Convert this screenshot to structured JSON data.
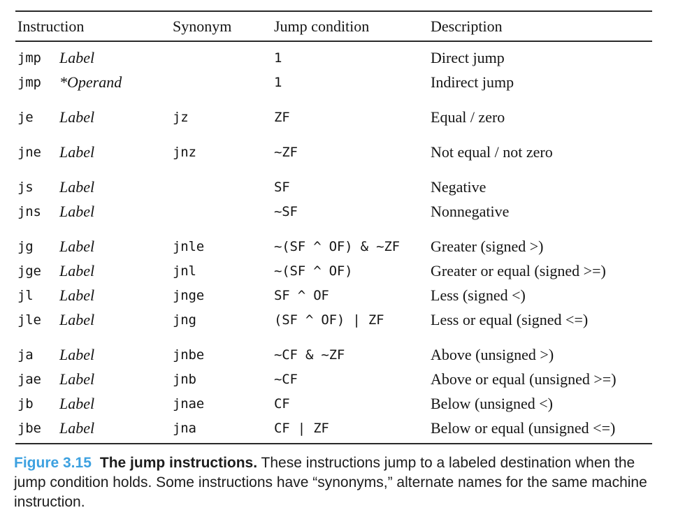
{
  "table": {
    "headers": [
      "Instruction",
      "Synonym",
      "Jump condition",
      "Description"
    ],
    "groups": [
      {
        "rows": [
          {
            "mnemonic": "jmp",
            "operand": "Label",
            "synonym": "",
            "condition": "1",
            "description": "Direct jump"
          },
          {
            "mnemonic": "jmp",
            "operand": "*Operand",
            "synonym": "",
            "condition": "1",
            "description": "Indirect jump"
          }
        ]
      },
      {
        "rows": [
          {
            "mnemonic": "je",
            "operand": "Label",
            "synonym": "jz",
            "condition": "ZF",
            "description": "Equal / zero"
          }
        ]
      },
      {
        "rows": [
          {
            "mnemonic": "jne",
            "operand": "Label",
            "synonym": "jnz",
            "condition": "~ZF",
            "description": "Not equal / not zero"
          }
        ]
      },
      {
        "rows": [
          {
            "mnemonic": "js",
            "operand": "Label",
            "synonym": "",
            "condition": "SF",
            "description": "Negative"
          },
          {
            "mnemonic": "jns",
            "operand": "Label",
            "synonym": "",
            "condition": "~SF",
            "description": "Nonnegative"
          }
        ]
      },
      {
        "rows": [
          {
            "mnemonic": "jg",
            "operand": "Label",
            "synonym": "jnle",
            "condition": "~(SF ^ OF) & ~ZF",
            "description": "Greater (signed >)"
          },
          {
            "mnemonic": "jge",
            "operand": "Label",
            "synonym": "jnl",
            "condition": "~(SF ^ OF)",
            "description": "Greater or equal (signed >=)"
          },
          {
            "mnemonic": "jl",
            "operand": "Label",
            "synonym": "jnge",
            "condition": "SF ^ OF",
            "description": "Less (signed <)"
          },
          {
            "mnemonic": "jle",
            "operand": "Label",
            "synonym": "jng",
            "condition": "(SF ^ OF) | ZF",
            "description": "Less or equal (signed <=)"
          }
        ]
      },
      {
        "rows": [
          {
            "mnemonic": "ja",
            "operand": "Label",
            "synonym": "jnbe",
            "condition": "~CF & ~ZF",
            "description": "Above (unsigned >)"
          },
          {
            "mnemonic": "jae",
            "operand": "Label",
            "synonym": "jnb",
            "condition": "~CF",
            "description": "Above or equal (unsigned >=)"
          },
          {
            "mnemonic": "jb",
            "operand": "Label",
            "synonym": "jnae",
            "condition": "CF",
            "description": "Below (unsigned <)"
          },
          {
            "mnemonic": "jbe",
            "operand": "Label",
            "synonym": "jna",
            "condition": "CF | ZF",
            "description": "Below or equal (unsigned <=)"
          }
        ]
      }
    ]
  },
  "caption": {
    "figure_label": "Figure 3.15",
    "title": "The jump instructions.",
    "body": "These instructions jump to a labeled destination when the jump condition holds. Some instructions have “synonyms,” alternate names for the same machine instruction."
  },
  "colors": {
    "figure_label_blue": "#3da1e0",
    "text": "#141414",
    "rule": "#2a2a2a"
  }
}
